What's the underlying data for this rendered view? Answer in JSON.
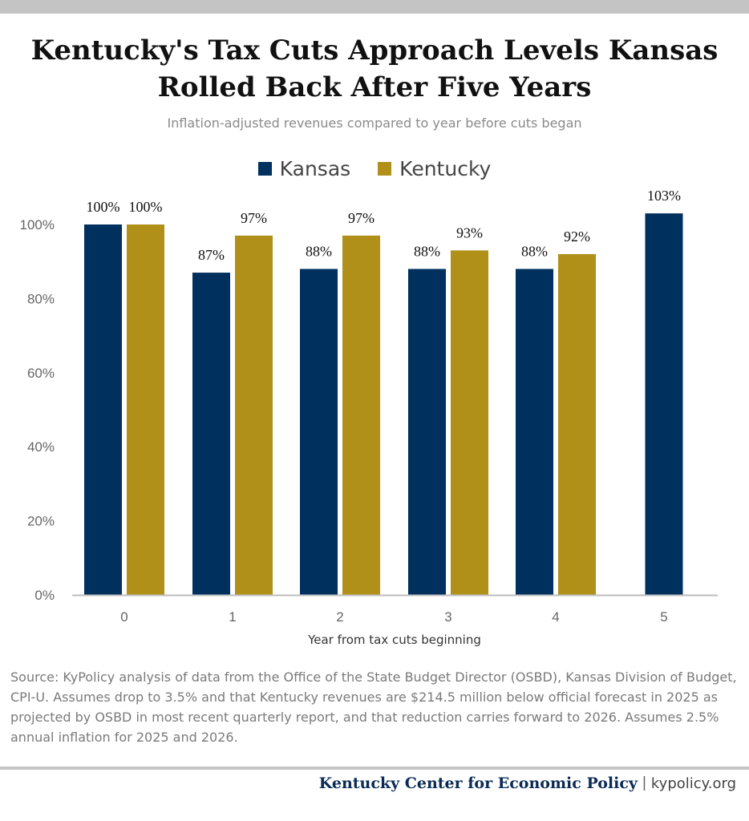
{
  "title_line1": "Kentucky's Tax Cuts Approach Levels Kansas",
  "title_line2": "Rolled Back After Five Years",
  "subtitle": "Inflation-adjusted revenues compared to year before cuts began",
  "source": "Source: KyPolicy analysis of data from the Office of the State Budget Director (OSBD), Kansas Division of Budget, CPI-U. Assumes drop to 3.5% and that Kentucky revenues are $214.5 million below official forecast in 2025 as projected by OSBD in most recent quarterly report, and that reduction carries forward to 2026. Assumes 2.5% annual inflation for 2025 and 2026.",
  "footer": {
    "org": "Kentucky Center for Economic Policy",
    "separator": "|",
    "url": "kypolicy.org"
  },
  "colors": {
    "kansas": "#00305e",
    "kentucky": "#b09018",
    "axis": "#bdbdbd",
    "tick_text": "#666666",
    "label_text": "#111111"
  },
  "chart_data": {
    "type": "bar",
    "categories": [
      "0",
      "1",
      "2",
      "3",
      "4",
      "5"
    ],
    "series": [
      {
        "name": "Kansas",
        "values": [
          100,
          87,
          88,
          88,
          88,
          103
        ],
        "labels": [
          "100%",
          "87%",
          "88%",
          "88%",
          "88%",
          "103%"
        ]
      },
      {
        "name": "Kentucky",
        "values": [
          100,
          97,
          97,
          93,
          92,
          null
        ],
        "labels": [
          "100%",
          "97%",
          "97%",
          "93%",
          "92%",
          ""
        ]
      }
    ],
    "xlabel": "Year from tax cuts beginning",
    "ylabel": "",
    "ylim": [
      0,
      100
    ],
    "yticks": [
      0,
      20,
      40,
      60,
      80,
      100
    ],
    "ytick_labels": [
      "0%",
      "20%",
      "40%",
      "60%",
      "80%",
      "100%"
    ],
    "grid": false,
    "legend": "top-center"
  }
}
